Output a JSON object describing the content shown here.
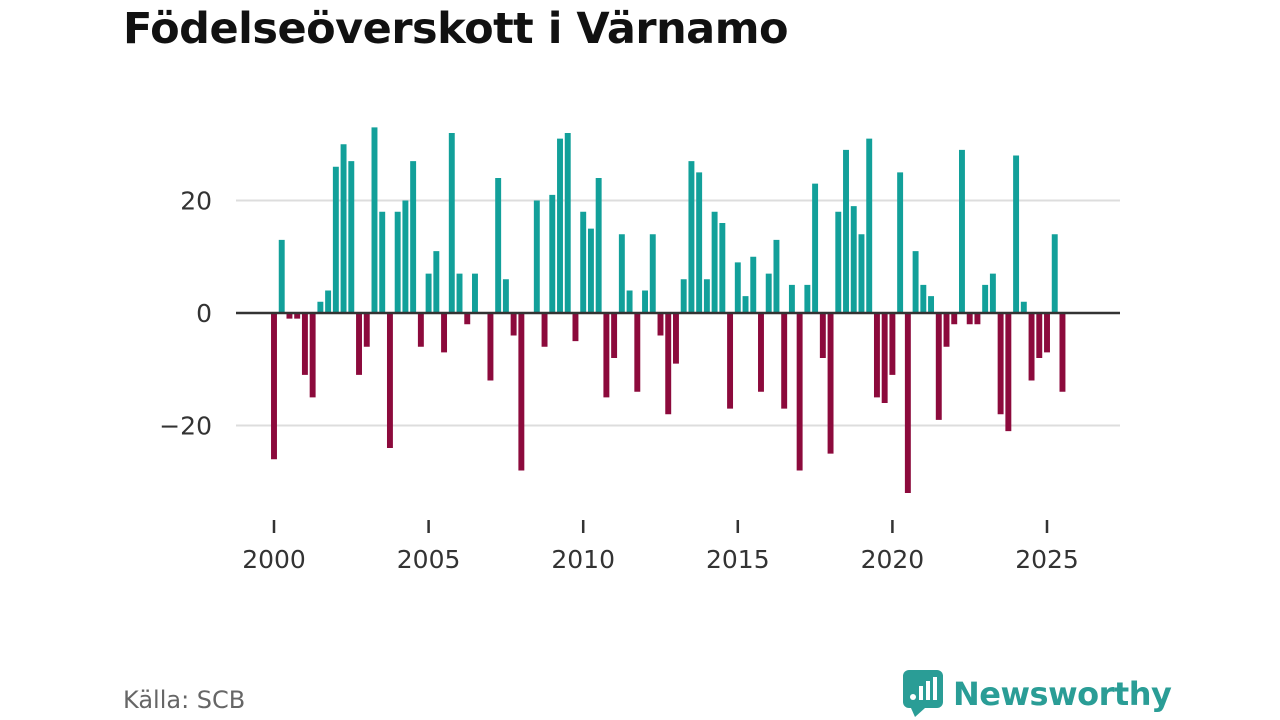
{
  "title": "Födelseöverskott i Värnamo",
  "source": "Källa: SCB",
  "brand": {
    "name": "Newsworthy",
    "icon": "newsworthy-logo-icon",
    "color": "#2a9d96"
  },
  "colors": {
    "positive": "#12a09a",
    "negative": "#8c0a3c",
    "grid": "#dddddd",
    "zero_line": "#333333",
    "axis_text": "#333333"
  },
  "chart_data": {
    "type": "bar",
    "title": "Födelseöverskott i Värnamo",
    "xlabel": "",
    "ylabel": "",
    "ylim": [
      -35,
      35
    ],
    "yticks": [
      20,
      0,
      -20
    ],
    "ytick_labels": [
      "20",
      "0",
      "−20"
    ],
    "xlim": [
      2000,
      2026.6
    ],
    "xticks": [
      2000,
      2005,
      2010,
      2015,
      2020,
      2025
    ],
    "xtick_labels": [
      "2000",
      "2005",
      "2010",
      "2015",
      "2020",
      "2025"
    ],
    "grid": true,
    "frequency": "quarterly",
    "series": [
      {
        "name": "Födelseöverskott",
        "start": 2000.0,
        "step": 0.25,
        "values": [
          -26,
          13,
          -1,
          -1,
          -11,
          -15,
          2,
          4,
          26,
          30,
          27,
          -11,
          -6,
          33,
          18,
          -24,
          18,
          20,
          27,
          -6,
          7,
          11,
          -7,
          32,
          7,
          -2,
          7,
          0,
          -12,
          24,
          6,
          -4,
          -28,
          0,
          20,
          -6,
          21,
          31,
          32,
          -5,
          18,
          15,
          24,
          -15,
          -8,
          14,
          4,
          -14,
          4,
          14,
          -4,
          -18,
          -9,
          6,
          27,
          25,
          6,
          18,
          16,
          -17,
          9,
          3,
          10,
          -14,
          7,
          13,
          -17,
          5,
          -28,
          5,
          23,
          -8,
          -25,
          18,
          29,
          19,
          14,
          31,
          -15,
          -16,
          -11,
          25,
          -32,
          11,
          5,
          3,
          -19,
          -6,
          -2,
          29,
          -2,
          -2,
          5,
          7,
          -18,
          -21,
          28,
          2,
          -12,
          -8,
          -7,
          14,
          -14
        ]
      }
    ]
  }
}
